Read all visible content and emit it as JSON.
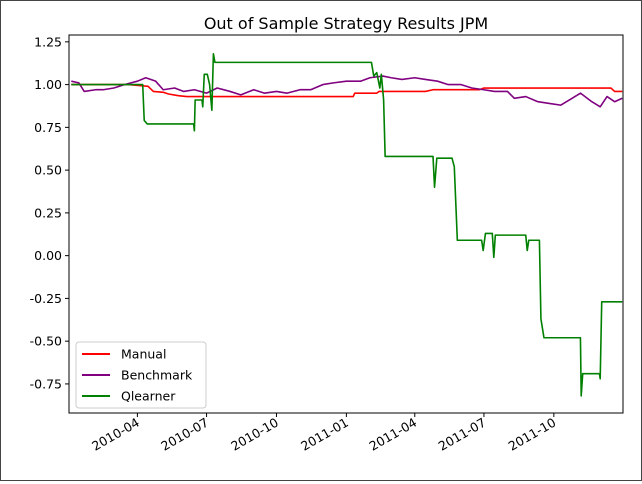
{
  "chart_data": {
    "type": "line",
    "title": "Out of Sample Strategy Results JPM",
    "xlabel": "",
    "ylabel": "",
    "x_ticks": [
      "2010-04",
      "2010-07",
      "2010-10",
      "2011-01",
      "2011-04",
      "2011-07",
      "2011-10"
    ],
    "y_ticks": [
      1.25,
      1.0,
      0.75,
      0.5,
      0.25,
      0.0,
      -0.25,
      -0.5,
      -0.75
    ],
    "xlim": [
      "2010-01-01",
      "2011-12-31"
    ],
    "ylim": [
      -0.92,
      1.29
    ],
    "legend_position": "lower-left",
    "grid": false,
    "series": [
      {
        "name": "Manual",
        "color": "#ff0000",
        "points": [
          [
            "2010-01-04",
            1.0
          ],
          [
            "2010-03-20",
            1.0
          ],
          [
            "2010-04-15",
            0.99
          ],
          [
            "2010-04-22",
            0.96
          ],
          [
            "2010-05-05",
            0.955
          ],
          [
            "2010-05-12",
            0.945
          ],
          [
            "2010-05-25",
            0.935
          ],
          [
            "2010-06-05",
            0.93
          ],
          [
            "2011-01-10",
            0.93
          ],
          [
            "2011-01-12",
            0.95
          ],
          [
            "2011-02-10",
            0.95
          ],
          [
            "2011-02-13",
            0.96
          ],
          [
            "2011-03-10",
            0.96
          ],
          [
            "2011-04-15",
            0.96
          ],
          [
            "2011-04-25",
            0.97
          ],
          [
            "2011-06-25",
            0.97
          ],
          [
            "2011-07-01",
            0.98
          ],
          [
            "2011-12-15",
            0.98
          ],
          [
            "2011-12-20",
            0.96
          ],
          [
            "2011-12-30",
            0.96
          ]
        ]
      },
      {
        "name": "Benchmark",
        "color": "#800080",
        "points": [
          [
            "2010-01-04",
            1.02
          ],
          [
            "2010-01-14",
            1.01
          ],
          [
            "2010-01-21",
            0.96
          ],
          [
            "2010-02-05",
            0.97
          ],
          [
            "2010-02-15",
            0.97
          ],
          [
            "2010-03-01",
            0.98
          ],
          [
            "2010-03-15",
            1.0
          ],
          [
            "2010-04-01",
            1.02
          ],
          [
            "2010-04-12",
            1.04
          ],
          [
            "2010-04-25",
            1.02
          ],
          [
            "2010-05-05",
            0.97
          ],
          [
            "2010-05-20",
            0.98
          ],
          [
            "2010-06-01",
            0.96
          ],
          [
            "2010-06-15",
            0.97
          ],
          [
            "2010-07-01",
            0.95
          ],
          [
            "2010-07-15",
            0.98
          ],
          [
            "2010-08-01",
            0.96
          ],
          [
            "2010-08-15",
            0.94
          ],
          [
            "2010-09-01",
            0.97
          ],
          [
            "2010-09-15",
            0.95
          ],
          [
            "2010-10-01",
            0.96
          ],
          [
            "2010-10-15",
            0.95
          ],
          [
            "2010-11-01",
            0.97
          ],
          [
            "2010-11-15",
            0.97
          ],
          [
            "2010-12-01",
            1.0
          ],
          [
            "2010-12-15",
            1.01
          ],
          [
            "2011-01-01",
            1.02
          ],
          [
            "2011-01-20",
            1.02
          ],
          [
            "2011-02-01",
            1.04
          ],
          [
            "2011-02-18",
            1.05
          ],
          [
            "2011-03-01",
            1.04
          ],
          [
            "2011-03-15",
            1.03
          ],
          [
            "2011-04-01",
            1.04
          ],
          [
            "2011-04-15",
            1.03
          ],
          [
            "2011-05-01",
            1.02
          ],
          [
            "2011-05-15",
            1.0
          ],
          [
            "2011-06-01",
            1.0
          ],
          [
            "2011-06-15",
            0.98
          ],
          [
            "2011-07-01",
            0.97
          ],
          [
            "2011-07-15",
            0.96
          ],
          [
            "2011-08-01",
            0.96
          ],
          [
            "2011-08-10",
            0.92
          ],
          [
            "2011-08-25",
            0.93
          ],
          [
            "2011-09-10",
            0.9
          ],
          [
            "2011-09-25",
            0.89
          ],
          [
            "2011-10-10",
            0.88
          ],
          [
            "2011-10-25",
            0.92
          ],
          [
            "2011-11-05",
            0.95
          ],
          [
            "2011-11-20",
            0.9
          ],
          [
            "2011-12-01",
            0.87
          ],
          [
            "2011-12-10",
            0.93
          ],
          [
            "2011-12-20",
            0.9
          ],
          [
            "2011-12-30",
            0.92
          ]
        ]
      },
      {
        "name": "Qlearner",
        "color": "#008000",
        "points": [
          [
            "2010-01-04",
            1.0
          ],
          [
            "2010-04-08",
            1.0
          ],
          [
            "2010-04-10",
            0.79
          ],
          [
            "2010-04-14",
            0.77
          ],
          [
            "2010-06-14",
            0.77
          ],
          [
            "2010-06-15",
            0.73
          ],
          [
            "2010-06-16",
            0.91
          ],
          [
            "2010-06-25",
            0.91
          ],
          [
            "2010-06-26",
            0.87
          ],
          [
            "2010-06-28",
            1.06
          ],
          [
            "2010-07-02",
            1.06
          ],
          [
            "2010-07-05",
            1.0
          ],
          [
            "2010-07-08",
            0.85
          ],
          [
            "2010-07-10",
            1.18
          ],
          [
            "2010-07-12",
            1.13
          ],
          [
            "2011-02-03",
            1.13
          ],
          [
            "2011-02-06",
            1.05
          ],
          [
            "2011-02-10",
            1.07
          ],
          [
            "2011-02-14",
            0.98
          ],
          [
            "2011-02-16",
            1.06
          ],
          [
            "2011-02-19",
            0.91
          ],
          [
            "2011-02-21",
            0.58
          ],
          [
            "2011-04-25",
            0.58
          ],
          [
            "2011-04-27",
            0.4
          ],
          [
            "2011-04-30",
            0.57
          ],
          [
            "2011-05-20",
            0.57
          ],
          [
            "2011-05-23",
            0.52
          ],
          [
            "2011-05-27",
            0.09
          ],
          [
            "2011-06-28",
            0.09
          ],
          [
            "2011-06-30",
            0.03
          ],
          [
            "2011-07-03",
            0.13
          ],
          [
            "2011-07-12",
            0.13
          ],
          [
            "2011-07-14",
            -0.01
          ],
          [
            "2011-07-16",
            0.12
          ],
          [
            "2011-08-25",
            0.12
          ],
          [
            "2011-08-27",
            0.03
          ],
          [
            "2011-08-29",
            0.09
          ],
          [
            "2011-09-12",
            0.09
          ],
          [
            "2011-09-14",
            -0.37
          ],
          [
            "2011-09-18",
            -0.48
          ],
          [
            "2011-11-05",
            -0.48
          ],
          [
            "2011-11-06",
            -0.82
          ],
          [
            "2011-11-08",
            -0.69
          ],
          [
            "2011-11-30",
            -0.69
          ],
          [
            "2011-12-01",
            -0.72
          ],
          [
            "2011-12-03",
            -0.27
          ],
          [
            "2011-12-30",
            -0.27
          ]
        ]
      }
    ]
  }
}
